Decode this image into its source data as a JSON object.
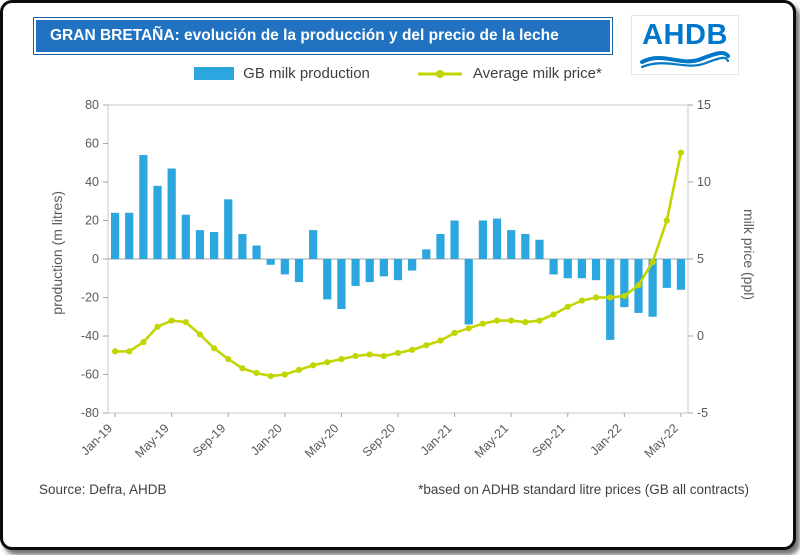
{
  "header": {
    "title_bold": "GRAN BRETAÑA",
    "title_rest": ": evolución de la producción y del precio de la leche"
  },
  "logo": {
    "text": "AHDB"
  },
  "legend": {
    "bar_label": "GB milk production",
    "line_label": "Average milk price*"
  },
  "colors": {
    "bar": "#2BA6DF",
    "line": "#C3D500",
    "header_bg": "#2173C2",
    "logo_blue": "#0077C8",
    "axis_text": "#595959",
    "plot_border": "#C9C9C9",
    "axis_line": "#A6A6A6"
  },
  "chart_data": {
    "type": "combo",
    "title": "GRAN BRETAÑA: evolución de la producción y del precio de la leche",
    "x": [
      "Jan-19",
      "Feb-19",
      "Mar-19",
      "Apr-19",
      "May-19",
      "Jun-19",
      "Jul-19",
      "Aug-19",
      "Sep-19",
      "Oct-19",
      "Nov-19",
      "Dec-19",
      "Jan-20",
      "Feb-20",
      "Mar-20",
      "Apr-20",
      "May-20",
      "Jun-20",
      "Jul-20",
      "Aug-20",
      "Sep-20",
      "Oct-20",
      "Nov-20",
      "Dec-20",
      "Jan-21",
      "Feb-21",
      "Mar-21",
      "Apr-21",
      "May-21",
      "Jun-21",
      "Jul-21",
      "Aug-21",
      "Sep-21",
      "Oct-21",
      "Nov-21",
      "Dec-21",
      "Jan-22",
      "Feb-22",
      "Mar-22",
      "Apr-22",
      "May-22"
    ],
    "x_tick_every": 4,
    "x_tick_labels": [
      "Jan-19",
      "May-19",
      "Sep-19",
      "Jan-20",
      "May-20",
      "Sep-20",
      "Jan-21",
      "May-21",
      "Sep-21",
      "Jan-22",
      "May-22"
    ],
    "series": [
      {
        "name": "GB milk production",
        "type": "bar",
        "axis": "left",
        "values": [
          24,
          24,
          54,
          38,
          47,
          23,
          15,
          14,
          31,
          13,
          7,
          -3,
          -8,
          -12,
          15,
          -21,
          -26,
          -14,
          -12,
          -9,
          -11,
          -6,
          5,
          13,
          20,
          -34,
          20,
          21,
          15,
          13,
          10,
          -8,
          -10,
          -10,
          -11,
          -42,
          -25,
          -28,
          -30,
          -15,
          -16
        ]
      },
      {
        "name": "Average milk price*",
        "type": "line",
        "axis": "right",
        "values": [
          -1.0,
          -1.0,
          -0.4,
          0.6,
          1.0,
          0.9,
          0.1,
          -0.8,
          -1.5,
          -2.1,
          -2.4,
          -2.6,
          -2.5,
          -2.2,
          -1.9,
          -1.7,
          -1.5,
          -1.3,
          -1.2,
          -1.3,
          -1.1,
          -0.9,
          -0.6,
          -0.3,
          0.2,
          0.5,
          0.8,
          1.0,
          1.0,
          0.9,
          1.0,
          1.4,
          1.9,
          2.3,
          2.5,
          2.5,
          2.6,
          3.3,
          4.8,
          7.5,
          11.9
        ]
      }
    ],
    "left_axis": {
      "label": "production (m litres)",
      "min": -80,
      "max": 80,
      "step": 20
    },
    "right_axis": {
      "label": "milk price (ppl)",
      "min": -5,
      "max": 15,
      "step": 5
    },
    "grid": false,
    "legend_position": "top"
  },
  "footer": {
    "source": "Source: Defra, AHDB",
    "note": "*based on ADHB standard litre prices (GB all contracts)"
  }
}
